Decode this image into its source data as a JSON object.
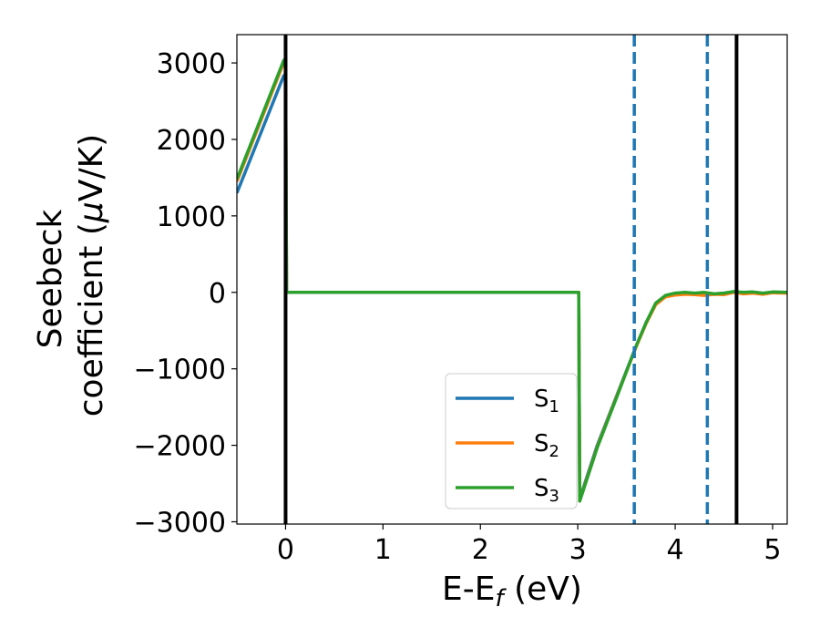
{
  "chart_data": {
    "type": "line",
    "xlabel": {
      "main": "E-E",
      "sub": "f",
      "unit": " (eV)"
    },
    "ylabel": {
      "line1": "Seebeck",
      "line2": "coefficient  (",
      "mu": "μ",
      "unit": "V/K)"
    },
    "xlim": [
      -0.5,
      5.15
    ],
    "ylim": [
      -3030,
      3370
    ],
    "xticks": [
      0,
      1,
      2,
      3,
      4,
      5
    ],
    "yticks": [
      3000,
      2000,
      1000,
      0,
      -1000,
      -2000,
      -3000
    ],
    "ytick_labels": [
      "3000",
      "2000",
      "1000",
      "0",
      "−1000",
      "−2000",
      "−3000"
    ],
    "grid": false,
    "legend_position": "lower-center",
    "series": [
      {
        "name": "S1",
        "label_main": "S",
        "label_sub": "1",
        "color": "#1f77b4",
        "x": [
          -0.5,
          -0.02,
          0.0,
          0.01,
          1.0,
          2.0,
          3.0,
          3.01,
          3.02,
          3.2,
          3.4,
          3.6,
          3.7,
          3.8,
          3.9,
          4.0,
          4.1,
          4.2,
          4.3,
          4.4,
          4.5,
          4.6,
          4.7,
          4.8,
          4.9,
          5.0,
          5.15
        ],
        "y": [
          1300,
          2830,
          2850,
          0,
          0,
          0,
          0,
          0,
          -2700,
          -2000,
          -1350,
          -700,
          -400,
          -150,
          -50,
          -20,
          -5,
          -15,
          -5,
          -25,
          -10,
          5,
          -5,
          0,
          -15,
          0,
          -5
        ]
      },
      {
        "name": "S2",
        "label_main": "S",
        "label_sub": "2",
        "color": "#ff7f0e",
        "x": [
          -0.5,
          -0.02,
          0.0,
          0.01,
          1.0,
          2.0,
          3.0,
          3.01,
          3.02,
          3.2,
          3.4,
          3.6,
          3.7,
          3.8,
          3.9,
          4.0,
          4.1,
          4.2,
          4.3,
          4.4,
          4.5,
          4.6,
          4.7,
          4.8,
          4.9,
          5.0,
          5.15
        ],
        "y": [
          1450,
          3000,
          3030,
          0,
          0,
          0,
          0,
          0,
          -2720,
          -2020,
          -1360,
          -710,
          -410,
          -160,
          -60,
          -35,
          -25,
          -30,
          -40,
          -25,
          -30,
          0,
          -20,
          -10,
          -25,
          -5,
          -10
        ]
      },
      {
        "name": "S3",
        "label_main": "S",
        "label_sub": "3",
        "color": "#2ca02c",
        "x": [
          -0.5,
          -0.02,
          0.0,
          0.01,
          1.0,
          2.0,
          3.0,
          3.01,
          3.02,
          3.2,
          3.4,
          3.6,
          3.7,
          3.8,
          3.9,
          4.0,
          4.1,
          4.2,
          4.3,
          4.4,
          4.5,
          4.6,
          4.7,
          4.8,
          4.9,
          5.0,
          5.15
        ],
        "y": [
          1480,
          3030,
          3060,
          0,
          0,
          0,
          0,
          0,
          -2730,
          -2030,
          -1370,
          -700,
          -400,
          -140,
          -40,
          -10,
          0,
          -10,
          0,
          -20,
          -10,
          10,
          0,
          5,
          -10,
          5,
          0
        ]
      }
    ],
    "vlines": [
      {
        "x": 0.0,
        "color": "#000000",
        "style": "solid"
      },
      {
        "x": 3.58,
        "color": "#1f77b4",
        "style": "dashed"
      },
      {
        "x": 4.33,
        "color": "#1f77b4",
        "style": "dashed"
      },
      {
        "x": 4.63,
        "color": "#000000",
        "style": "solid"
      }
    ]
  }
}
